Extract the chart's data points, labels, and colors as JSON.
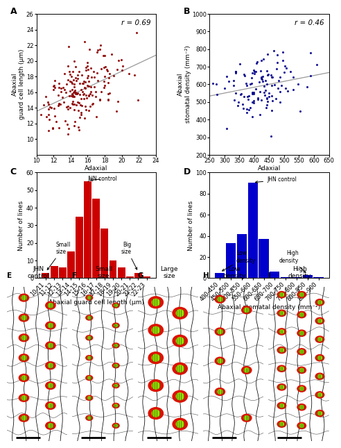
{
  "panel_A": {
    "title": "A",
    "xlabel": "Adaxial\nguard cell length (μm)",
    "ylabel": "Abaxial\nguard cell length (μm)",
    "r": 0.69,
    "xlim": [
      10,
      24
    ],
    "ylim": [
      8,
      26
    ],
    "xticks": [
      10,
      12,
      14,
      16,
      18,
      20,
      22,
      24
    ],
    "yticks": [
      10,
      12,
      14,
      16,
      18,
      20,
      22,
      24,
      26
    ],
    "color": "#8B0000",
    "trendline_color": "#999999"
  },
  "panel_B": {
    "title": "B",
    "xlabel": "Adaxial\nstomatal density (mm⁻²)",
    "ylabel": "Abaxial\nstomatal density (mm⁻²)",
    "r": 0.46,
    "xlim": [
      250,
      650
    ],
    "ylim": [
      200,
      1000
    ],
    "xticks": [
      250,
      300,
      350,
      400,
      450,
      500,
      550,
      600,
      650
    ],
    "yticks": [
      200,
      300,
      400,
      500,
      600,
      700,
      800,
      900,
      1000
    ],
    "color": "#00008B",
    "trendline_color": "#999999"
  },
  "panel_C": {
    "title": "C",
    "xlabel": "Abaxial guard cell length (μm)",
    "ylabel": "Number of lines",
    "bins": [
      "10-11",
      "11-12",
      "12-13",
      "13-14",
      "14-15",
      "15-16",
      "16-17",
      "17-18",
      "18-19",
      "19-20",
      "20-21",
      "21-22",
      "22-23"
    ],
    "values": [
      3,
      7,
      6,
      15,
      35,
      55,
      45,
      28,
      10,
      6,
      1,
      3,
      1
    ],
    "color": "#cc0000",
    "ylim": [
      0,
      60
    ],
    "yticks": [
      0,
      10,
      20,
      30,
      40,
      50,
      60
    ],
    "small_size_bin": 0,
    "big_size_bin": 11,
    "jhn_control_bin": 5
  },
  "panel_D": {
    "title": "D",
    "xlabel": "Abaxial stomatal density (mm⁻²)",
    "ylabel": "Number of lines",
    "bins": [
      "400-450",
      "450-500",
      "500-550",
      "550-600",
      "600-650",
      "650-700",
      "700-750",
      "750-800",
      "800-850",
      "850-900"
    ],
    "values": [
      5,
      33,
      42,
      90,
      37,
      6,
      1,
      1,
      3,
      1
    ],
    "color": "#0000cc",
    "ylim": [
      0,
      100
    ],
    "yticks": [
      0,
      20,
      40,
      60,
      80,
      100
    ],
    "low_density_bin": 0,
    "high_density_bin": 8,
    "jhn_control_bin": 3
  },
  "stomata_color_outer": "#dd0000",
  "stomata_color_inner": "#88cc00",
  "stomata_color_stripe": "#226600"
}
